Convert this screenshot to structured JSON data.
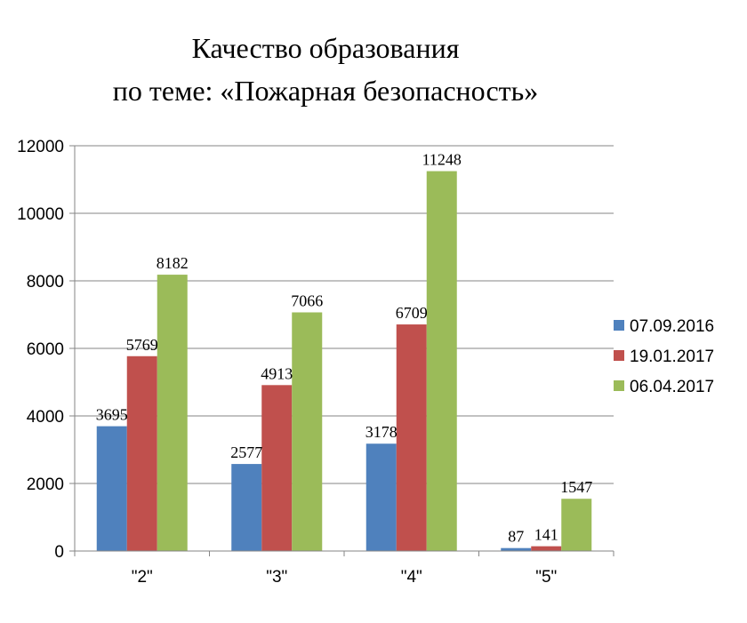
{
  "chart_data": {
    "type": "bar",
    "title_lines": [
      "Качество образования",
      "по теме: «Пожарная безопасность»"
    ],
    "categories": [
      "\"2\"",
      "\"3\"",
      "\"4\"",
      "\"5\""
    ],
    "series": [
      {
        "name": "07.09.2016",
        "color": "#4F81BD",
        "values": [
          3695,
          2577,
          3178,
          87
        ]
      },
      {
        "name": "19.01.2017",
        "color": "#C0504D",
        "values": [
          5769,
          4913,
          6709,
          141
        ]
      },
      {
        "name": "06.04.2017",
        "color": "#9BBB59",
        "values": [
          8182,
          7066,
          11248,
          1547
        ]
      }
    ],
    "ylim": [
      0,
      12000
    ],
    "yticks": [
      0,
      2000,
      4000,
      6000,
      8000,
      10000,
      12000
    ],
    "grid": true,
    "legend_position": "right"
  }
}
